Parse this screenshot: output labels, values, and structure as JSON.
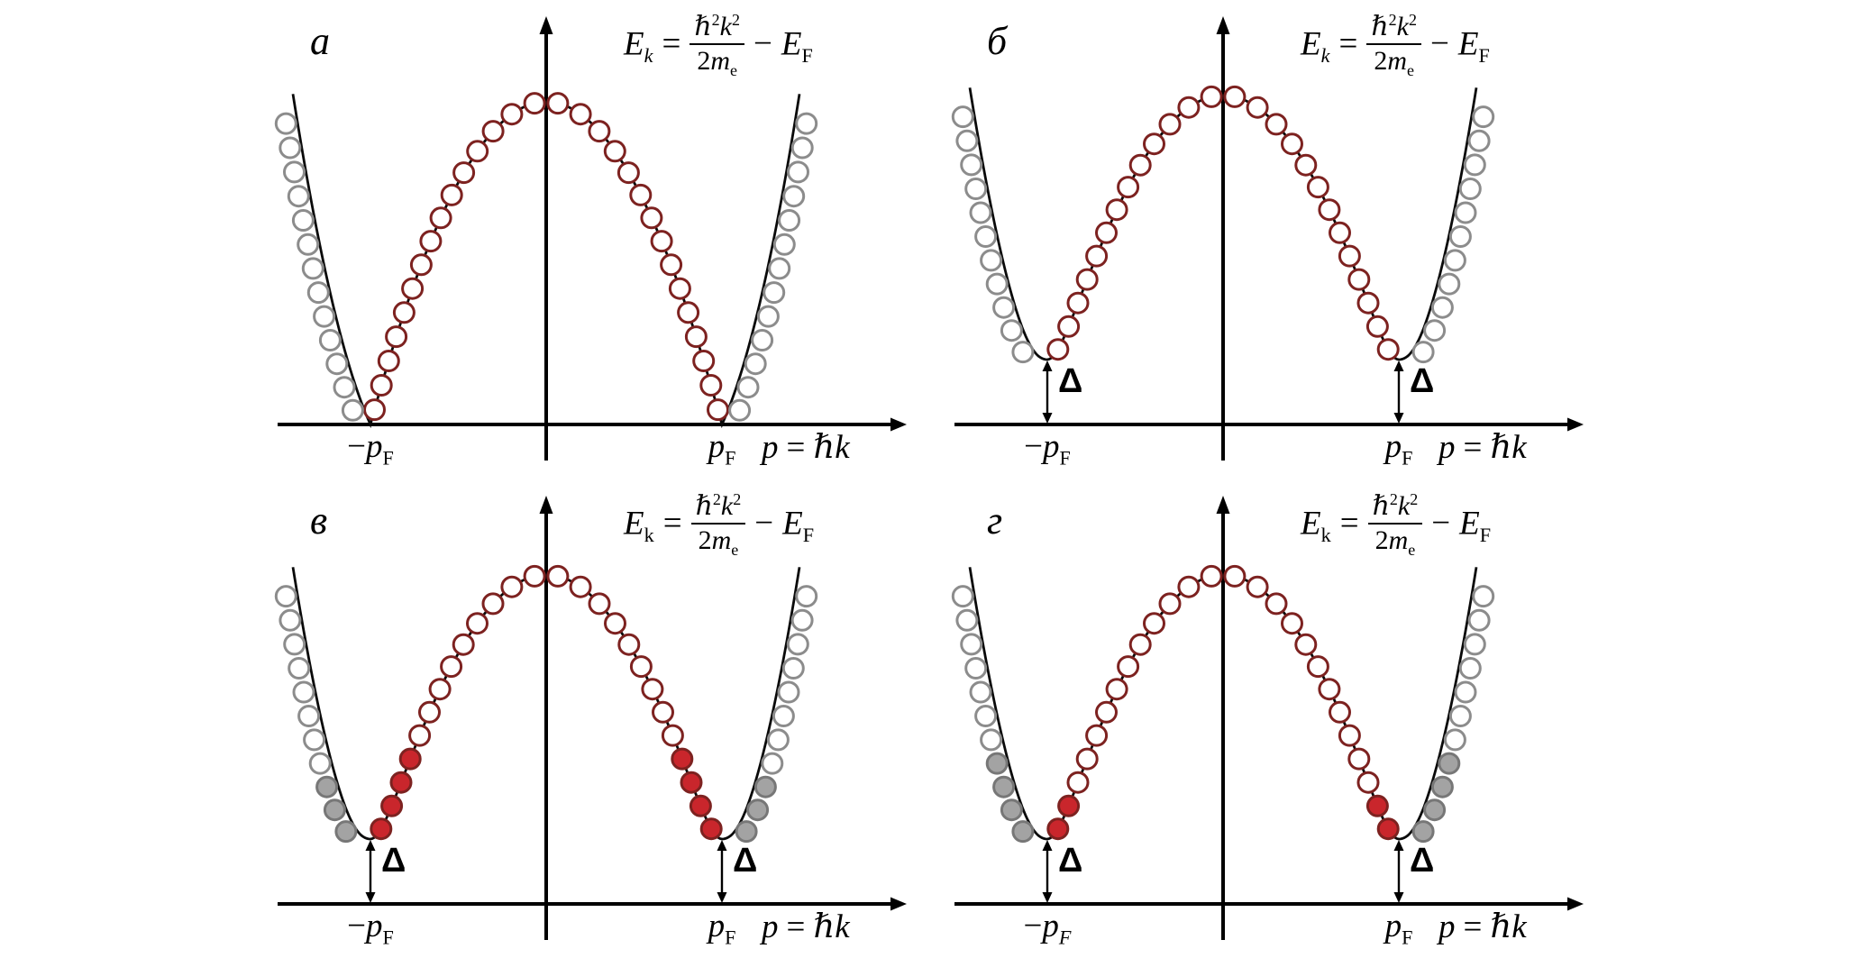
{
  "figure": {
    "colors": {
      "background": "#ffffff",
      "axis": "#000000",
      "curve": "#0a0a0a",
      "inner_ring": "#7d2220",
      "inner_fill": "#c9262c",
      "outer_ring": "#8c8c8c",
      "outer_fill": "#a3a3a3",
      "outer_fill_ring": "#777777"
    }
  },
  "formula": {
    "E": "E",
    "k_sub": "k",
    "eq": "=",
    "hbar": "ℏ",
    "sq": "2",
    "k": "k",
    "den_coeff": "2",
    "m": "m",
    "e_sub": "e",
    "minus": "−",
    "F_sub": "F"
  },
  "panels": [
    {
      "label": "а",
      "has_gap": false,
      "filled_inner": 0,
      "filled_outer": 0,
      "axis": {
        "minus": "−",
        "p": "p",
        "f_sub": "F",
        "p_sym": "p",
        "eq": "=",
        "hbar_k": "ℏk"
      }
    },
    {
      "label": "б",
      "has_gap": true,
      "delta": "Δ",
      "filled_inner": 0,
      "filled_outer": 0,
      "axis": {
        "minus": "−",
        "p": "p",
        "f_sub": "F",
        "p_sym": "p",
        "eq": "=",
        "hbar_k": "ℏk"
      }
    },
    {
      "label": "в",
      "has_gap": true,
      "delta": "Δ",
      "filled_inner": 4,
      "filled_outer": 3,
      "axis": {
        "minus": "−",
        "p": "p",
        "f_sub": "F",
        "p_sym": "p",
        "eq": "=",
        "hbar_k": "ℏk"
      }
    },
    {
      "label": "г",
      "has_gap": true,
      "delta": "Δ",
      "filled_inner": 2,
      "filled_outer": 4,
      "axis": {
        "minus": "−",
        "p": "p",
        "f_sub": "F",
        "p_sym": "p",
        "eq": "=",
        "hbar_k": "ℏk"
      }
    }
  ]
}
